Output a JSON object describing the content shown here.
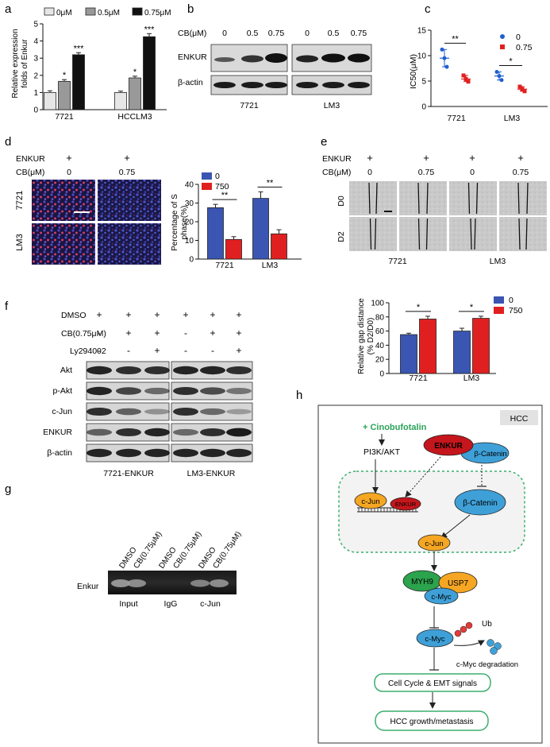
{
  "panels": {
    "a": "a",
    "b": "b",
    "c": "c",
    "d": "d",
    "e": "e",
    "f": "f",
    "g": "g",
    "h": "h"
  },
  "colors": {
    "c0": "#e6e6e6",
    "c05": "#999999",
    "c075": "#111111",
    "blue": "#3a56b2",
    "red": "#e02020",
    "green_border": "#3cae6e",
    "ellipse_blue": "#3fa0d8",
    "ellipse_orange": "#f5a623",
    "myh9_green": "#2ca34d",
    "enkur_red": "#c4161c",
    "ub_red": "#e33a3a"
  },
  "chart_a": {
    "type": "bar",
    "ylabel_line1": "Relative expression",
    "ylabel_line2": "folds of Enkur",
    "ylim": [
      0,
      5
    ],
    "yticks": [
      "0",
      "1",
      "2",
      "3",
      "4",
      "5"
    ],
    "categories": [
      "7721",
      "HCCLM3"
    ],
    "series": [
      {
        "name": "0μM",
        "values": [
          1.0,
          1.0
        ],
        "errors": [
          0.1,
          0.08
        ],
        "color": "#e6e6e6",
        "sig": [
          "",
          ""
        ]
      },
      {
        "name": "0.5μM",
        "values": [
          1.65,
          1.85
        ],
        "errors": [
          0.1,
          0.1
        ],
        "color": "#999999",
        "sig": [
          "*",
          "*"
        ]
      },
      {
        "name": "0.75μM",
        "values": [
          3.2,
          4.25
        ],
        "errors": [
          0.12,
          0.18
        ],
        "color": "#111111",
        "sig": [
          "***",
          "***"
        ]
      }
    ]
  },
  "blot_b": {
    "header": "CB(μM)",
    "doses": [
      "0",
      "0.5",
      "0.75",
      "0",
      "0.5",
      "0.75"
    ],
    "rows": [
      "ENKUR",
      "β-actin"
    ],
    "cells": [
      "7721",
      "LM3"
    ]
  },
  "chart_c": {
    "type": "scatter",
    "ylabel": "IC50(μM)",
    "ylim": [
      0,
      15
    ],
    "yticks": [
      "0",
      "5",
      "10",
      "15"
    ],
    "categories": [
      "7721",
      "LM3"
    ],
    "legend": [
      {
        "name": "0",
        "color": "#1f5fd1"
      },
      {
        "name": "0.75",
        "color": "#e02020"
      }
    ],
    "series": [
      {
        "name": "0",
        "points": [
          [
            9.5,
            11.2,
            7.8
          ],
          [
            6.0,
            6.8,
            5.2
          ]
        ]
      },
      {
        "name": "0.75",
        "points": [
          [
            5.4,
            6.1,
            4.9
          ],
          [
            3.4,
            3.9,
            3.0
          ]
        ]
      }
    ],
    "sig": [
      "**",
      "*"
    ]
  },
  "panel_d": {
    "enkur_label": "ENKUR",
    "cb_label": "CB(μM)",
    "plus": "+",
    "doses": [
      "0",
      "0.75"
    ],
    "rows": [
      "7721",
      "LM3"
    ]
  },
  "chart_d": {
    "type": "bar",
    "ylabel_line1": "Percentage of S",
    "ylabel_line2": "phase(%)",
    "ylim": [
      0,
      40
    ],
    "yticks": [
      "0",
      "10",
      "20",
      "30",
      "40"
    ],
    "categories": [
      "7721",
      "LM3"
    ],
    "series": [
      {
        "name": "0",
        "values": [
          27.5,
          32.5
        ],
        "errors": [
          1.8,
          3.5
        ],
        "color": "#3a56b2"
      },
      {
        "name": "750",
        "values": [
          10.5,
          13.5
        ],
        "errors": [
          1.5,
          2.2
        ],
        "color": "#e02020"
      }
    ],
    "sig": [
      "**",
      "**"
    ]
  },
  "panel_e": {
    "enkur_label": "ENKUR",
    "cb_label": "CB(μM)",
    "plus": "+",
    "doses": [
      "0",
      "0.75",
      "0",
      "0.75"
    ],
    "rows": [
      "D0",
      "D2"
    ],
    "cells": [
      "7721",
      "LM3"
    ]
  },
  "chart_e": {
    "type": "bar",
    "ylabel_line1": "Relative gap distance",
    "ylabel_line2": "(% D2/D0)",
    "ylim": [
      0,
      100
    ],
    "yticks": [
      "0",
      "20",
      "40",
      "60",
      "80",
      "100"
    ],
    "categories": [
      "7721",
      "LM3"
    ],
    "series": [
      {
        "name": "0",
        "values": [
          55,
          60
        ],
        "errors": [
          2,
          4
        ],
        "color": "#3a56b2"
      },
      {
        "name": "750",
        "values": [
          77,
          78
        ],
        "errors": [
          4,
          3
        ],
        "color": "#e02020"
      }
    ],
    "sig": [
      "*",
      "*"
    ]
  },
  "blot_f": {
    "treatments": [
      {
        "label": "DMSO",
        "marks": [
          "+",
          "+",
          "+",
          "+",
          "+",
          "+"
        ]
      },
      {
        "label": "CB(0.75μM)",
        "marks": [
          "-",
          "+",
          "+",
          "-",
          "+",
          "+"
        ]
      },
      {
        "label": "Ly294002",
        "marks": [
          "-",
          "-",
          "+",
          "-",
          "-",
          "+"
        ]
      }
    ],
    "rows": [
      "Akt",
      "p-Akt",
      "c-Jun",
      "ENKUR",
      "β-actin"
    ],
    "cells": [
      "7721-ENKUR",
      "LM3-ENKUR"
    ]
  },
  "gel_g": {
    "row_label": "Enkur",
    "lanes": [
      "DMSO",
      "CB(0.75μM)",
      "DMSO",
      "CB(0.75μM)",
      "DMSO",
      "CB(0.75μM)"
    ],
    "groups": [
      "Input",
      "IgG",
      "c-Jun"
    ]
  },
  "diagram_h": {
    "hcc": "HCC",
    "cinobufotalin": "+ Cinobufotalin",
    "pi3k": "PI3K/AKT",
    "enkur": "ENKUR",
    "beta_catenin": "β-Catenin",
    "cjun": "c-Jun",
    "myh9": "MYH9",
    "usp7": "USP7",
    "cmyc": "c-Myc",
    "ub": "Ub",
    "degradation": "c-Myc degradation",
    "cell_cycle": "Cell Cycle & EMT signals",
    "growth": "HCC growth/metastasis"
  }
}
